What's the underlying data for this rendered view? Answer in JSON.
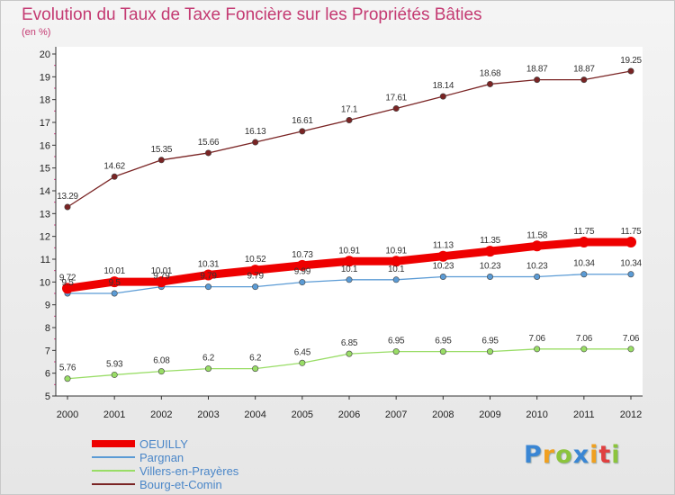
{
  "chart_data": {
    "type": "line",
    "title": "Evolution du Taux de Taxe Foncière sur les Propriétés Bâties",
    "subtitle": "(en %)",
    "x": [
      "2000",
      "2001",
      "2002",
      "2003",
      "2004",
      "2005",
      "2006",
      "2007",
      "2008",
      "2009",
      "2010",
      "2011",
      "2012"
    ],
    "ylim": [
      5,
      20
    ],
    "yticks": [
      5,
      6,
      7,
      8,
      9,
      10,
      11,
      12,
      13,
      14,
      15,
      16,
      17,
      18,
      19,
      20
    ],
    "legend_position": "bottom-left",
    "series": [
      {
        "name": "OEUILLY",
        "color": "#ee0000",
        "values": [
          9.72,
          10.01,
          10.01,
          10.31,
          10.52,
          10.73,
          10.91,
          10.91,
          11.13,
          11.35,
          11.58,
          11.75,
          11.75
        ],
        "labels": [
          "9.72",
          "10.01",
          "10.01",
          "10.31",
          "10.52",
          "10.73",
          "10.91",
          "10.91",
          "11.13",
          "11.35",
          "11.58",
          "11.75",
          "11.75"
        ]
      },
      {
        "name": "Pargnan",
        "color": "#5b9bd5",
        "values": [
          9.5,
          9.5,
          9.79,
          9.79,
          9.79,
          9.99,
          10.1,
          10.1,
          10.23,
          10.23,
          10.23,
          10.34,
          10.34
        ],
        "labels": [
          "9.5",
          "9.5",
          "9.79",
          "9.79",
          "9.79",
          "9.99",
          "10.1",
          "10.1",
          "10.23",
          "10.23",
          "10.23",
          "10.34",
          "10.34"
        ]
      },
      {
        "name": "Villers-en-Prayères",
        "color": "#99dd66",
        "values": [
          5.76,
          5.93,
          6.08,
          6.2,
          6.2,
          6.45,
          6.85,
          6.95,
          6.95,
          6.95,
          7.06,
          7.06,
          7.06
        ],
        "labels": [
          "5.76",
          "5.93",
          "6.08",
          "6.2",
          "6.2",
          "6.45",
          "6.85",
          "6.95",
          "6.95",
          "6.95",
          "7.06",
          "7.06",
          "7.06"
        ]
      },
      {
        "name": "Bourg-et-Comin",
        "color": "#7a2424",
        "values": [
          13.29,
          14.62,
          15.35,
          15.66,
          16.13,
          16.61,
          17.1,
          17.61,
          18.14,
          18.68,
          18.87,
          18.87,
          19.25
        ],
        "labels": [
          "13.29",
          "14.62",
          "15.35",
          "15.66",
          "16.13",
          "16.61",
          "17.1",
          "17.61",
          "18.14",
          "18.68",
          "18.87",
          "18.87",
          "19.25"
        ]
      }
    ]
  },
  "brand": {
    "letters": [
      "P",
      "r",
      "o",
      "x",
      "i",
      "t",
      "i"
    ],
    "colors": [
      "#3a86d4",
      "#f0a020",
      "#8cc43c",
      "#3a86d4",
      "#f0a020",
      "#e04040",
      "#8cc43c"
    ]
  }
}
